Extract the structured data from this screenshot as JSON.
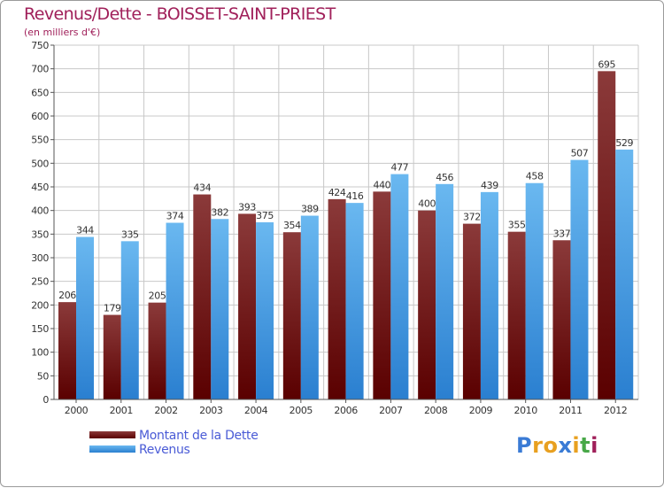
{
  "header": {
    "title": "Revenus/Dette - BOISSET-SAINT-PRIEST",
    "subtitle": "(en milliers d'€)"
  },
  "legend": {
    "dette_label": "Montant de la Dette",
    "revenus_label": "Revenus"
  },
  "logo": {
    "letters": [
      "P",
      "r",
      "o",
      "x",
      "i",
      "t",
      "i"
    ],
    "colors": [
      "#3a7bd5",
      "#e8a020",
      "#e8a020",
      "#3a7bd5",
      "#e8a020",
      "#48a848",
      "#a0205a"
    ]
  },
  "colors": {
    "dette_top": "#8b3a3a",
    "dette_bottom": "#5a0000",
    "revenus_top": "#6ab8f0",
    "revenus_bottom": "#2a7fd0",
    "grid": "#c8c8c8",
    "title": "#a0205a"
  },
  "chart_data": {
    "type": "bar",
    "title": "Revenus/Dette - BOISSET-SAINT-PRIEST",
    "ylabel": "(en milliers d'€)",
    "xlabel": "",
    "ylim": [
      0,
      750
    ],
    "ytick_step": 50,
    "grid": true,
    "legend_position": "bottom-left",
    "categories": [
      "2000",
      "2001",
      "2002",
      "2003",
      "2004",
      "2005",
      "2006",
      "2007",
      "2008",
      "2009",
      "2010",
      "2011",
      "2012"
    ],
    "series": [
      {
        "name": "Montant de la Dette",
        "values": [
          206,
          179,
          205,
          434,
          393,
          354,
          424,
          440,
          400,
          372,
          355,
          337,
          695
        ]
      },
      {
        "name": "Revenus",
        "values": [
          344,
          335,
          374,
          382,
          375,
          389,
          416,
          477,
          456,
          439,
          458,
          507,
          529
        ]
      }
    ]
  }
}
